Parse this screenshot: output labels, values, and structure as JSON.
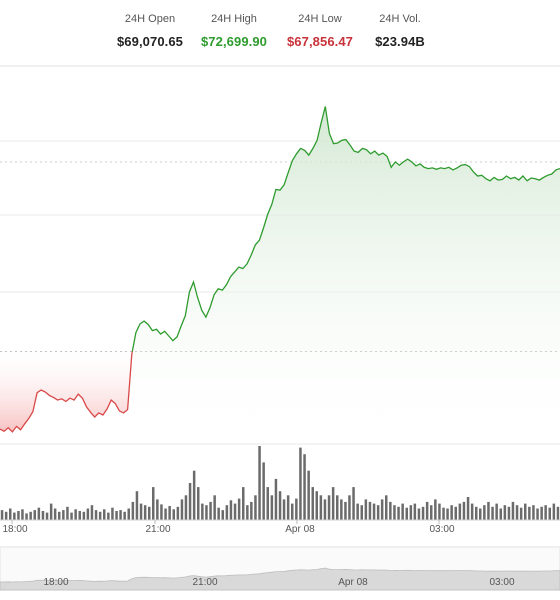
{
  "stats": {
    "open": {
      "label": "24H Open",
      "value": "$69,070.65"
    },
    "high": {
      "label": "24H High",
      "value": "$72,699.90"
    },
    "low": {
      "label": "24H Low",
      "value": "$67,856.47"
    },
    "vol": {
      "label": "24H Vol.",
      "value": "$23.94B"
    }
  },
  "colors": {
    "up": "#2e9b2e",
    "down": "#d94848",
    "up_fill": "#e6f2e6",
    "down_fill": "#fbd9d9",
    "volume": "#6b6b6b",
    "navigator": "#d9d9d9"
  },
  "chart_data": {
    "type": "line",
    "reference_line": 69070.65,
    "ylim": [
      67700,
      73300
    ],
    "price_series": [
      67920,
      67890,
      67940,
      67880,
      67960,
      67910,
      68000,
      68080,
      68180,
      68460,
      68500,
      68470,
      68420,
      68390,
      68350,
      68370,
      68330,
      68380,
      68350,
      68440,
      68380,
      68250,
      68170,
      68100,
      68160,
      68130,
      68220,
      68350,
      68300,
      68190,
      68160,
      68210,
      69030,
      69350,
      69480,
      69520,
      69470,
      69380,
      69400,
      69330,
      69370,
      69300,
      69230,
      69290,
      69450,
      69600,
      69950,
      70100,
      69870,
      69680,
      69580,
      69720,
      69910,
      70000,
      69980,
      70060,
      70180,
      70250,
      70320,
      70300,
      70370,
      70500,
      70650,
      70720,
      70900,
      71100,
      71250,
      71470,
      71460,
      71540,
      71720,
      71900,
      72000,
      72080,
      72050,
      71980,
      72080,
      72200,
      72460,
      72700,
      72300,
      72150,
      72160,
      72200,
      72210,
      72130,
      72040,
      72020,
      72080,
      72060,
      72000,
      72040,
      71980,
      72010,
      71960,
      71800,
      71880,
      71830,
      71880,
      71920,
      71880,
      71820,
      71850,
      71800,
      71780,
      71790,
      71770,
      71790,
      71780,
      71800,
      71760,
      71790,
      71830,
      71840,
      71810,
      71730,
      71670,
      71680,
      71630,
      71600,
      71650,
      71610,
      71620,
      71670,
      71630,
      71650,
      71610,
      71670,
      71600,
      71640,
      71630,
      71610,
      71650,
      71680,
      71700,
      71760,
      71780
    ],
    "volume_series": [
      12,
      10,
      14,
      9,
      11,
      13,
      8,
      10,
      12,
      15,
      11,
      9,
      20,
      14,
      10,
      12,
      16,
      9,
      13,
      11,
      10,
      14,
      18,
      12,
      10,
      13,
      9,
      15,
      11,
      12,
      10,
      14,
      22,
      35,
      20,
      18,
      16,
      40,
      25,
      19,
      14,
      17,
      13,
      16,
      25,
      30,
      45,
      60,
      40,
      20,
      18,
      22,
      30,
      15,
      12,
      18,
      24,
      20,
      26,
      40,
      18,
      22,
      30,
      90,
      70,
      40,
      30,
      50,
      35,
      25,
      30,
      20,
      26,
      88,
      80,
      60,
      40,
      35,
      30,
      25,
      30,
      40,
      30,
      25,
      22,
      30,
      40,
      20,
      18,
      25,
      22,
      20,
      18,
      25,
      30,
      22,
      18,
      16,
      20,
      15,
      18,
      20,
      14,
      16,
      22,
      18,
      25,
      20,
      15,
      14,
      18,
      16,
      20,
      22,
      28,
      20,
      16,
      14,
      18,
      22,
      16,
      20,
      14,
      18,
      16,
      22,
      18,
      15,
      20,
      16,
      18,
      14,
      16,
      18,
      15,
      20,
      16
    ],
    "x_ticks": [
      "18:00",
      "21:00",
      "Apr 08",
      "03:00"
    ],
    "navigator_ticks": [
      "18:00",
      "21:00",
      "Apr 08",
      "03:00"
    ]
  }
}
